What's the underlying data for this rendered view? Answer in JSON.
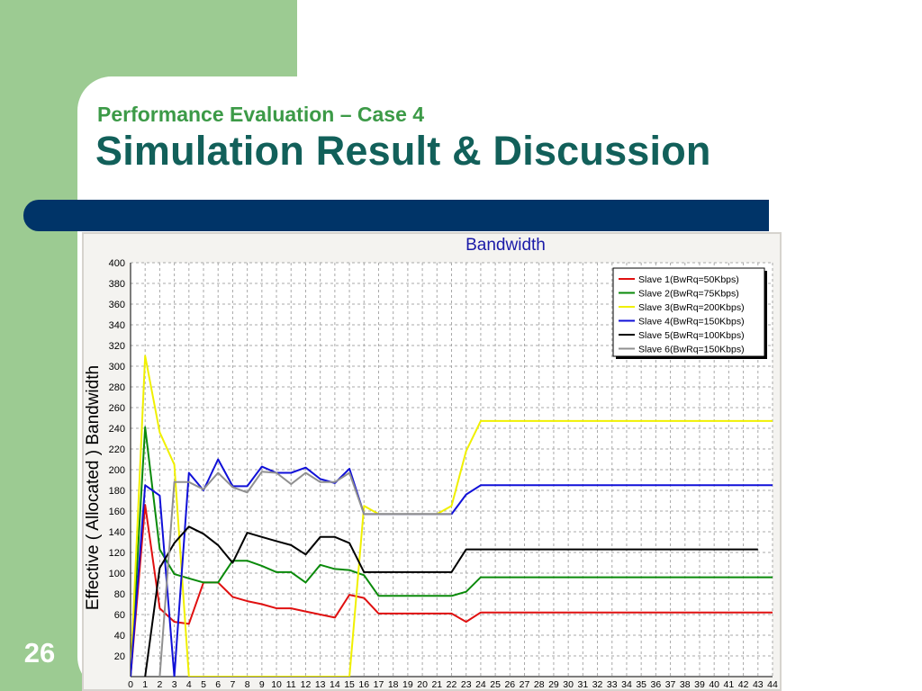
{
  "slide": {
    "subtitle": "Performance Evaluation – Case 4",
    "title": "Simulation Result & Discussion",
    "slide_number": "26",
    "colors": {
      "sidebar_green": "#9ccb92",
      "banner_navy": "#003468",
      "subtitle_green": "#3c9a47",
      "title_teal": "#12605a"
    }
  },
  "chart_data": {
    "type": "line",
    "title": "Bandwidth",
    "xlabel": "",
    "ylabel": "Effective ( Allocated ) Bandwidth",
    "xlim": [
      0,
      44
    ],
    "ylim": [
      0,
      400
    ],
    "x_ticks": [
      0,
      1,
      2,
      3,
      4,
      5,
      6,
      7,
      8,
      9,
      10,
      11,
      12,
      13,
      14,
      15,
      16,
      17,
      18,
      19,
      20,
      21,
      22,
      23,
      24,
      25,
      26,
      27,
      28,
      29,
      30,
      31,
      32,
      33,
      34,
      35,
      36,
      37,
      38,
      39,
      40,
      41,
      42,
      43,
      44
    ],
    "y_ticks": [
      20,
      40,
      60,
      80,
      100,
      120,
      140,
      160,
      180,
      200,
      220,
      240,
      260,
      280,
      300,
      320,
      340,
      360,
      380,
      400
    ],
    "grid": true,
    "legend_position": "top-right",
    "series": [
      {
        "name": "Slave 1(BwRq=50Kbps)",
        "color": "#e01010",
        "points": [
          [
            0,
            0
          ],
          [
            1,
            166
          ],
          [
            2,
            66
          ],
          [
            3,
            53
          ],
          [
            4,
            51
          ],
          [
            5,
            91
          ],
          [
            6,
            91
          ],
          [
            7,
            77
          ],
          [
            8,
            73
          ],
          [
            9,
            70
          ],
          [
            10,
            66
          ],
          [
            11,
            66
          ],
          [
            12,
            63
          ],
          [
            13,
            60
          ],
          [
            14,
            57
          ],
          [
            15,
            79
          ],
          [
            16,
            76
          ],
          [
            17,
            61
          ],
          [
            18,
            61
          ],
          [
            19,
            61
          ],
          [
            20,
            61
          ],
          [
            21,
            61
          ],
          [
            22,
            61
          ],
          [
            23,
            53
          ],
          [
            24,
            62
          ],
          [
            44,
            62
          ]
        ]
      },
      {
        "name": "Slave 2(BwRq=75Kbps)",
        "color": "#0a8a0a",
        "points": [
          [
            0,
            0
          ],
          [
            1,
            241
          ],
          [
            2,
            123
          ],
          [
            3,
            99
          ],
          [
            4,
            95
          ],
          [
            5,
            91
          ],
          [
            6,
            91
          ],
          [
            7,
            112
          ],
          [
            8,
            112
          ],
          [
            9,
            107
          ],
          [
            10,
            101
          ],
          [
            11,
            101
          ],
          [
            12,
            91
          ],
          [
            13,
            108
          ],
          [
            14,
            104
          ],
          [
            15,
            103
          ],
          [
            16,
            98
          ],
          [
            17,
            78
          ],
          [
            18,
            78
          ],
          [
            19,
            78
          ],
          [
            20,
            78
          ],
          [
            21,
            78
          ],
          [
            22,
            78
          ],
          [
            23,
            82
          ],
          [
            24,
            96
          ],
          [
            44,
            96
          ]
        ]
      },
      {
        "name": "Slave 3(BwRq=200Kbps)",
        "color": "#f0f000",
        "points": [
          [
            0,
            0
          ],
          [
            1,
            310
          ],
          [
            2,
            236
          ],
          [
            3,
            205
          ],
          [
            4,
            0
          ],
          [
            15,
            0
          ],
          [
            16,
            165
          ],
          [
            17,
            157
          ],
          [
            18,
            157
          ],
          [
            19,
            157
          ],
          [
            20,
            157
          ],
          [
            21,
            157
          ],
          [
            22,
            165
          ],
          [
            23,
            218
          ],
          [
            24,
            247
          ],
          [
            44,
            247
          ]
        ]
      },
      {
        "name": "Slave 4(BwRq=150Kbps)",
        "color": "#1010d8",
        "points": [
          [
            0,
            0
          ],
          [
            1,
            185
          ],
          [
            2,
            175
          ],
          [
            3,
            0
          ],
          [
            4,
            197
          ],
          [
            5,
            180
          ],
          [
            6,
            210
          ],
          [
            7,
            184
          ],
          [
            8,
            184
          ],
          [
            9,
            203
          ],
          [
            10,
            197
          ],
          [
            11,
            197
          ],
          [
            12,
            202
          ],
          [
            13,
            191
          ],
          [
            14,
            187
          ],
          [
            15,
            201
          ],
          [
            16,
            157
          ],
          [
            17,
            157
          ],
          [
            18,
            157
          ],
          [
            19,
            157
          ],
          [
            20,
            157
          ],
          [
            21,
            157
          ],
          [
            22,
            157
          ],
          [
            23,
            176
          ],
          [
            24,
            185
          ],
          [
            44,
            185
          ]
        ]
      },
      {
        "name": "Slave 5(BwRq=100Kbps)",
        "color": "#000000",
        "points": [
          [
            1,
            0
          ],
          [
            2,
            105
          ],
          [
            3,
            129
          ],
          [
            4,
            145
          ],
          [
            5,
            138
          ],
          [
            6,
            127
          ],
          [
            7,
            110
          ],
          [
            8,
            139
          ],
          [
            9,
            135
          ],
          [
            10,
            131
          ],
          [
            11,
            127
          ],
          [
            12,
            118
          ],
          [
            13,
            135
          ],
          [
            14,
            135
          ],
          [
            15,
            129
          ],
          [
            16,
            101
          ],
          [
            17,
            101
          ],
          [
            18,
            101
          ],
          [
            19,
            101
          ],
          [
            20,
            101
          ],
          [
            21,
            101
          ],
          [
            22,
            101
          ],
          [
            23,
            123
          ],
          [
            24,
            123
          ],
          [
            43,
            123
          ]
        ]
      },
      {
        "name": "Slave 6(BwRq=150Kbps)",
        "color": "#909090",
        "points": [
          [
            2,
            0
          ],
          [
            3,
            188
          ],
          [
            4,
            188
          ],
          [
            5,
            181
          ],
          [
            6,
            197
          ],
          [
            7,
            183
          ],
          [
            8,
            178
          ],
          [
            9,
            198
          ],
          [
            10,
            197
          ],
          [
            11,
            186
          ],
          [
            12,
            197
          ],
          [
            13,
            188
          ],
          [
            14,
            188
          ],
          [
            15,
            197
          ],
          [
            16,
            157
          ],
          [
            17,
            157
          ],
          [
            18,
            157
          ],
          [
            19,
            157
          ],
          [
            20,
            157
          ],
          [
            21,
            157
          ],
          [
            22,
            157
          ]
        ]
      }
    ]
  }
}
